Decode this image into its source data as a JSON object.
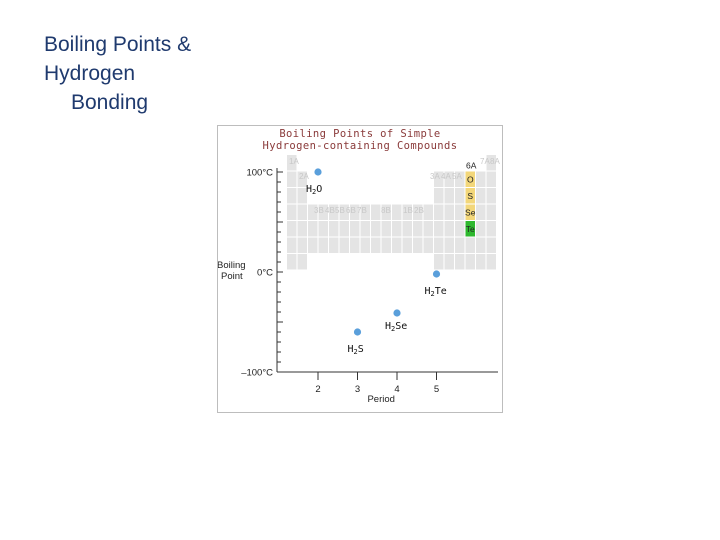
{
  "slide": {
    "title_lines": [
      "Boiling Points &",
      "Hydrogen",
      "Bonding"
    ]
  },
  "colors": {
    "title": "#1f3a6e",
    "caption": "#8a3a3a",
    "point": "#5a9fdb",
    "grid_cell": "#e4e4e4",
    "group6_yellow": "#f3d77a",
    "tellurium_green": "#2eb82e"
  },
  "chart_data": {
    "type": "scatter",
    "title_lines": [
      "Boiling Points of Simple",
      "Hydrogen-containing Compounds"
    ],
    "xlabel": "Period",
    "ylabel_lines": [
      "Boiling",
      "Point"
    ],
    "x_ticks": [
      "2",
      "3",
      "4",
      "5"
    ],
    "y_ticks": [
      {
        "value": 100,
        "label": "100°C"
      },
      {
        "value": 0,
        "label": "0°C"
      },
      {
        "value": -100,
        "label": "–100°C"
      }
    ],
    "xlim": [
      1.5,
      5.5
    ],
    "ylim": [
      -100,
      100
    ],
    "points": [
      {
        "x": 2,
        "y": 100,
        "base": "H",
        "sub": "2",
        "tail": "O"
      },
      {
        "x": 3,
        "y": -60,
        "base": "H",
        "sub": "2",
        "tail": "S"
      },
      {
        "x": 4,
        "y": -41,
        "base": "H",
        "sub": "2",
        "tail": "Se"
      },
      {
        "x": 5,
        "y": -2,
        "base": "H",
        "sub": "2",
        "tail": "Te"
      }
    ],
    "inset_periodic_table": {
      "group_labels": [
        "1A",
        "2A",
        "3B",
        "4B",
        "5B",
        "6B",
        "7B",
        "8B",
        "1B",
        "2B",
        "3A",
        "4A",
        "5A",
        "6A",
        "7A",
        "8A"
      ],
      "group6_elements": [
        "O",
        "S",
        "Se",
        "Te"
      ]
    }
  }
}
